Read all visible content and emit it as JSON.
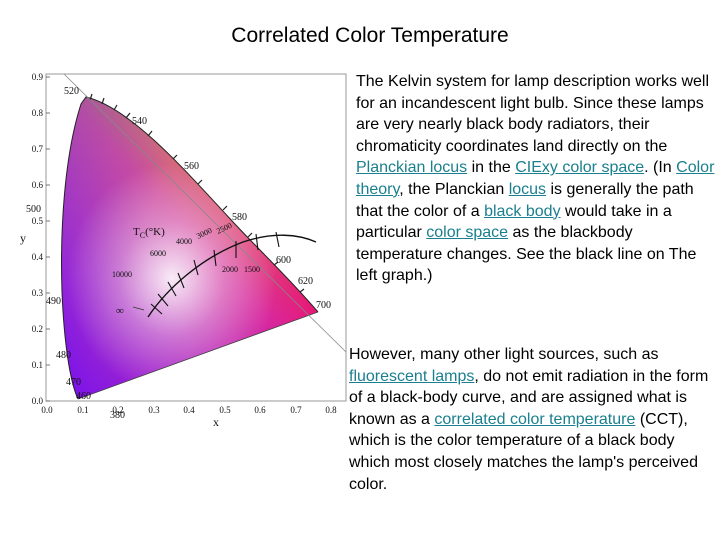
{
  "slide": {
    "title": "Correlated Color Temperature",
    "paragraph1": [
      {
        "text": "The Kelvin system for lamp description works well for an incandescent light bulb. Since these lamps are very nearly black body radiators, their chromaticity coordinates land directly on the "
      },
      {
        "text": "Planckian locus",
        "link": true
      },
      {
        "text": " in the "
      },
      {
        "text": "CIExy color space",
        "link": true
      },
      {
        "text": ". (In "
      },
      {
        "text": "Color theory",
        "link": true
      },
      {
        "text": ", the Planckian "
      },
      {
        "text": "locus",
        "link": true
      },
      {
        "text": " is generally the path that the color of a "
      },
      {
        "text": "black body",
        "link": true
      },
      {
        "text": " would take in a particular "
      },
      {
        "text": "color space",
        "link": true
      },
      {
        "text": " as the blackbody temperature changes. See the black line on The left graph.)"
      }
    ],
    "paragraph2": [
      {
        "text": "However, many other light sources, such as "
      },
      {
        "text": "fluorescent lamps",
        "link": true
      },
      {
        "text": ", do not emit radiation in the form of a black-body curve, and are assigned what is known as a "
      },
      {
        "text": "correlated color temperature",
        "link": true
      },
      {
        "text": " (CCT), which is the color temperature of a black body which most closely matches the lamp's perceived color."
      }
    ],
    "link_color": "#1a7f8e"
  },
  "diagram": {
    "x_axis_label": "x",
    "y_axis_label": "y",
    "x_ticks": [
      "0.0",
      "0.1",
      "0.2",
      "0.3",
      "0.4",
      "0.5",
      "0.6",
      "0.7",
      "0.8"
    ],
    "y_ticks": [
      "0.0",
      "0.1",
      "0.2",
      "0.3",
      "0.4",
      "0.5",
      "0.6",
      "0.7",
      "0.8",
      "0.9"
    ],
    "wavelength_labels": [
      "380",
      "460",
      "470",
      "480",
      "490",
      "500",
      "520",
      "540",
      "560",
      "580",
      "600",
      "620",
      "700"
    ],
    "tc_label": "T",
    "tc_subscript": "C",
    "tc_unit": "(°K)",
    "temperature_labels": [
      "10000",
      "6000",
      "4000",
      "3000",
      "2500",
      "2000",
      "1500"
    ],
    "infinity_label": "∞"
  }
}
